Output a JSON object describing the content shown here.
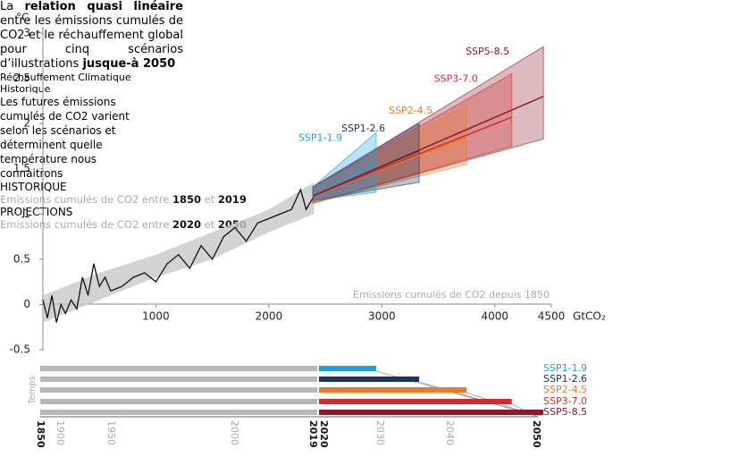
{
  "chart_data": {
    "type": "line",
    "y_unit": "°C",
    "x_unit": "GtCO₂",
    "xlim": [
      0,
      4500
    ],
    "ylim": [
      -0.5,
      3
    ],
    "xticks": [
      1000,
      2000,
      3000,
      4000,
      4500
    ],
    "yticks": [
      -0.5,
      0,
      0.5,
      1,
      1.5,
      2,
      2.5,
      3
    ],
    "x_note": "Emissions cumulés de CO2 depuis 1850",
    "annotation": [
      {
        "text": "La ",
        "bold": false
      },
      {
        "text": "relation quasi linéaire",
        "bold": true
      },
      {
        "text": " entre les émissions cumulés de CO2 et le réchauffement global pour cinq scénarios d’illustrations ",
        "bold": false
      },
      {
        "text": "jusque-à 2050",
        "bold": true
      }
    ],
    "history": {
      "name": "Réchauffement Climatique Historique",
      "color": "#111111",
      "x": [
        0,
        40,
        80,
        120,
        160,
        200,
        250,
        300,
        350,
        400,
        450,
        500,
        550,
        600,
        700,
        800,
        900,
        1000,
        1100,
        1200,
        1300,
        1400,
        1500,
        1600,
        1700,
        1800,
        1900,
        2000,
        2100,
        2200,
        2280,
        2330,
        2400
      ],
      "values": [
        0.05,
        -0.15,
        0.1,
        -0.2,
        0.0,
        -0.1,
        0.05,
        -0.05,
        0.3,
        0.1,
        0.45,
        0.2,
        0.3,
        0.15,
        0.2,
        0.3,
        0.35,
        0.25,
        0.45,
        0.55,
        0.4,
        0.65,
        0.5,
        0.75,
        0.85,
        0.7,
        0.9,
        0.95,
        1.0,
        1.05,
        1.27,
        1.05,
        1.2
      ],
      "band": {
        "color": "#c8c8c8",
        "x": [
          0,
          500,
          1000,
          1500,
          2000,
          2400
        ],
        "lower": [
          -0.2,
          0.05,
          0.3,
          0.5,
          0.8,
          1.0
        ],
        "upper": [
          0.1,
          0.35,
          0.55,
          0.8,
          1.05,
          1.35
        ]
      }
    },
    "series": [
      {
        "name": "SSP1-1.9",
        "color": "#1e9fd6",
        "x": [
          2390,
          2950
        ],
        "values": [
          1.2,
          1.55
        ],
        "lower": [
          1.15,
          1.24
        ],
        "upper": [
          1.3,
          1.9
        ]
      },
      {
        "name": "SSP1-2.6",
        "color": "#1d3461",
        "x": [
          2390,
          3330
        ],
        "values": [
          1.2,
          1.7
        ],
        "lower": [
          1.15,
          1.35
        ],
        "upper": [
          1.3,
          2.0
        ]
      },
      {
        "name": "SSP2-4.5",
        "color": "#e87b2a",
        "x": [
          2390,
          3750
        ],
        "values": [
          1.2,
          1.85
        ],
        "lower": [
          1.12,
          1.55
        ],
        "upper": [
          1.3,
          2.2
        ]
      },
      {
        "name": "SSP3-7.0",
        "color": "#d42a2a",
        "x": [
          2390,
          4150
        ],
        "values": [
          1.2,
          2.07
        ],
        "lower": [
          1.12,
          1.75
        ],
        "upper": [
          1.3,
          2.55
        ]
      },
      {
        "name": "SSP5-8.5",
        "color": "#8b1a2a",
        "x": [
          2390,
          4430
        ],
        "values": [
          1.2,
          2.3
        ],
        "lower": [
          1.12,
          1.83
        ],
        "upper": [
          1.3,
          2.85
        ]
      }
    ],
    "timeline": {
      "axis_label": "Temps",
      "history_color": "#b8b8b8",
      "ticks": [
        {
          "label": "1850",
          "bold": true
        },
        {
          "label": "1900",
          "bold": false
        },
        {
          "label": "1950",
          "bold": false
        },
        {
          "label": "2000",
          "bold": false
        },
        {
          "label": "2019",
          "bold": true
        },
        {
          "label": "2020",
          "bold": true
        },
        {
          "label": "2030",
          "bold": false
        },
        {
          "label": "2040",
          "bold": false
        },
        {
          "label": "2050",
          "bold": true
        }
      ],
      "right_text": "Les futures émissions cumulés de CO2 varient selon les scénarios et déterminent quelle température nous connaitrons",
      "captions": [
        {
          "title": "HISTORIQUE",
          "runs": [
            {
              "text": "Emissions cumulés de CO2 entre ",
              "bold": false
            },
            {
              "text": "1850",
              "bold": true
            },
            {
              "text": " et ",
              "bold": false
            },
            {
              "text": "2019",
              "bold": true
            }
          ]
        },
        {
          "title": "PROJECTIONS",
          "runs": [
            {
              "text": "Emissions cumulés de CO2 entre ",
              "bold": false
            },
            {
              "text": "2020",
              "bold": true
            },
            {
              "text": " et ",
              "bold": false
            },
            {
              "text": "2050",
              "bold": true
            }
          ]
        }
      ]
    }
  }
}
